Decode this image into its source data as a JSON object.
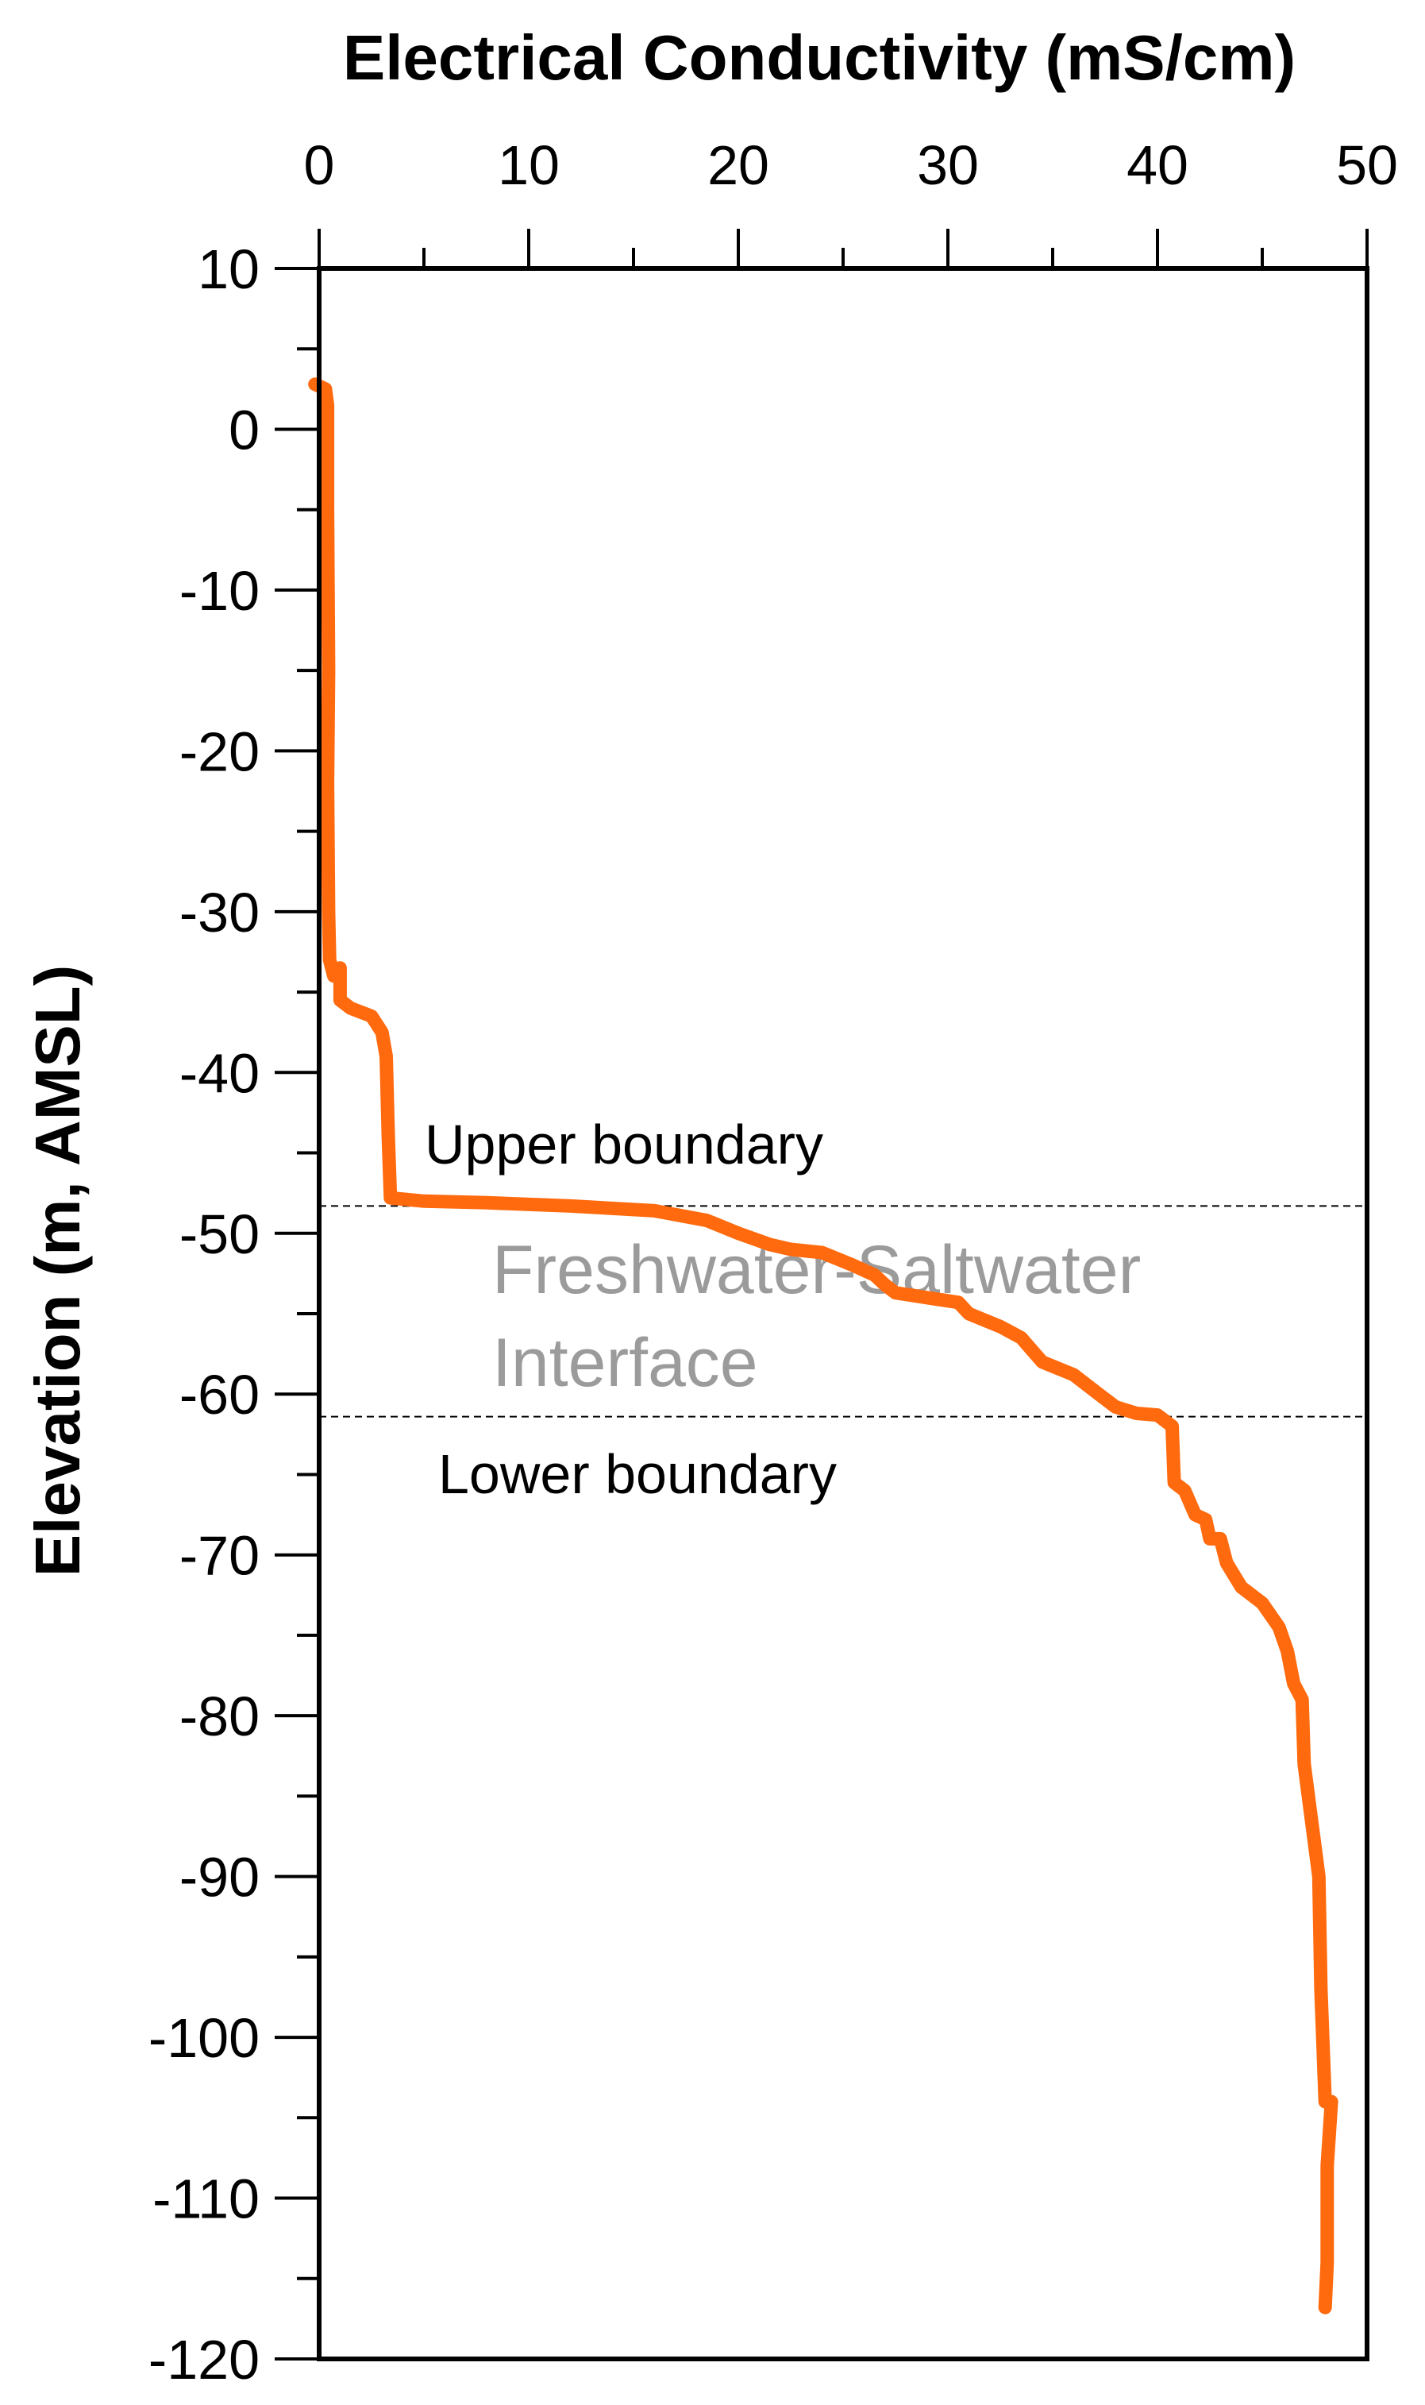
{
  "chart_data": {
    "type": "line",
    "title": "",
    "xlabel": "Electrical Conductivity (mS/cm)",
    "ylabel": "Elevation (m, AMSL)",
    "xlim": [
      0,
      50
    ],
    "ylim": [
      -120,
      10
    ],
    "x_axis_position": "top",
    "x_ticks": [
      "0",
      "10",
      "20",
      "30",
      "40",
      "50"
    ],
    "y_ticks": [
      "10",
      "0",
      "-10",
      "-20",
      "-30",
      "-40",
      "-50",
      "-60",
      "-70",
      "-80",
      "-90",
      "-100",
      "-110",
      "-120"
    ],
    "grid": false,
    "series": [
      {
        "color": "#ff6a0e",
        "points": [
          [
            -0.2,
            2.8
          ],
          [
            0.3,
            2.5
          ],
          [
            0.4,
            1.5
          ],
          [
            0.4,
            -5
          ],
          [
            0.45,
            -15
          ],
          [
            0.4,
            -22
          ],
          [
            0.45,
            -30
          ],
          [
            0.5,
            -33
          ],
          [
            0.7,
            -34
          ],
          [
            1.0,
            -33.5
          ],
          [
            1.0,
            -35.5
          ],
          [
            1.5,
            -36
          ],
          [
            2.5,
            -36.5
          ],
          [
            3.0,
            -37.5
          ],
          [
            3.2,
            -39
          ],
          [
            3.3,
            -44
          ],
          [
            3.4,
            -47.8
          ],
          [
            5,
            -48
          ],
          [
            8,
            -48.1
          ],
          [
            12,
            -48.3
          ],
          [
            16,
            -48.6
          ],
          [
            18.5,
            -49.2
          ],
          [
            20,
            -50
          ],
          [
            21.5,
            -50.7
          ],
          [
            22.5,
            -51
          ],
          [
            24,
            -51.2
          ],
          [
            25.5,
            -52
          ],
          [
            26.5,
            -52.6
          ],
          [
            27,
            -53.2
          ],
          [
            27.5,
            -53.7
          ],
          [
            29,
            -54
          ],
          [
            30.5,
            -54.3
          ],
          [
            31,
            -55
          ],
          [
            32.5,
            -55.8
          ],
          [
            33.5,
            -56.5
          ],
          [
            34.5,
            -58
          ],
          [
            36,
            -58.8
          ],
          [
            37,
            -59.8
          ],
          [
            38,
            -60.8
          ],
          [
            39,
            -61.2
          ],
          [
            40,
            -61.3
          ],
          [
            40.7,
            -62
          ],
          [
            40.8,
            -65.5
          ],
          [
            41.3,
            -66
          ],
          [
            41.8,
            -67.5
          ],
          [
            42.3,
            -67.8
          ],
          [
            42.5,
            -69
          ],
          [
            43,
            -69
          ],
          [
            43.3,
            -70.5
          ],
          [
            44,
            -72
          ],
          [
            45,
            -73
          ],
          [
            45.8,
            -74.5
          ],
          [
            46.2,
            -76
          ],
          [
            46.5,
            -78
          ],
          [
            46.9,
            -79
          ],
          [
            47.0,
            -83
          ],
          [
            47.3,
            -86
          ],
          [
            47.7,
            -90
          ],
          [
            47.8,
            -97
          ],
          [
            48.0,
            -104
          ],
          [
            48.3,
            -104
          ],
          [
            48.1,
            -108
          ],
          [
            48.1,
            -114
          ],
          [
            48.0,
            -116.8
          ]
        ]
      }
    ],
    "reference_lines": [
      {
        "y": -48.3,
        "style": "dashed",
        "label": "Upper boundary"
      },
      {
        "y": -61.4,
        "style": "dashed",
        "label": "Lower boundary"
      }
    ],
    "annotations": {
      "upper_boundary": "Upper boundary",
      "lower_boundary": "Lower boundary",
      "interface_line1": "Freshwater-Saltwater",
      "interface_line2": "Interface"
    }
  }
}
